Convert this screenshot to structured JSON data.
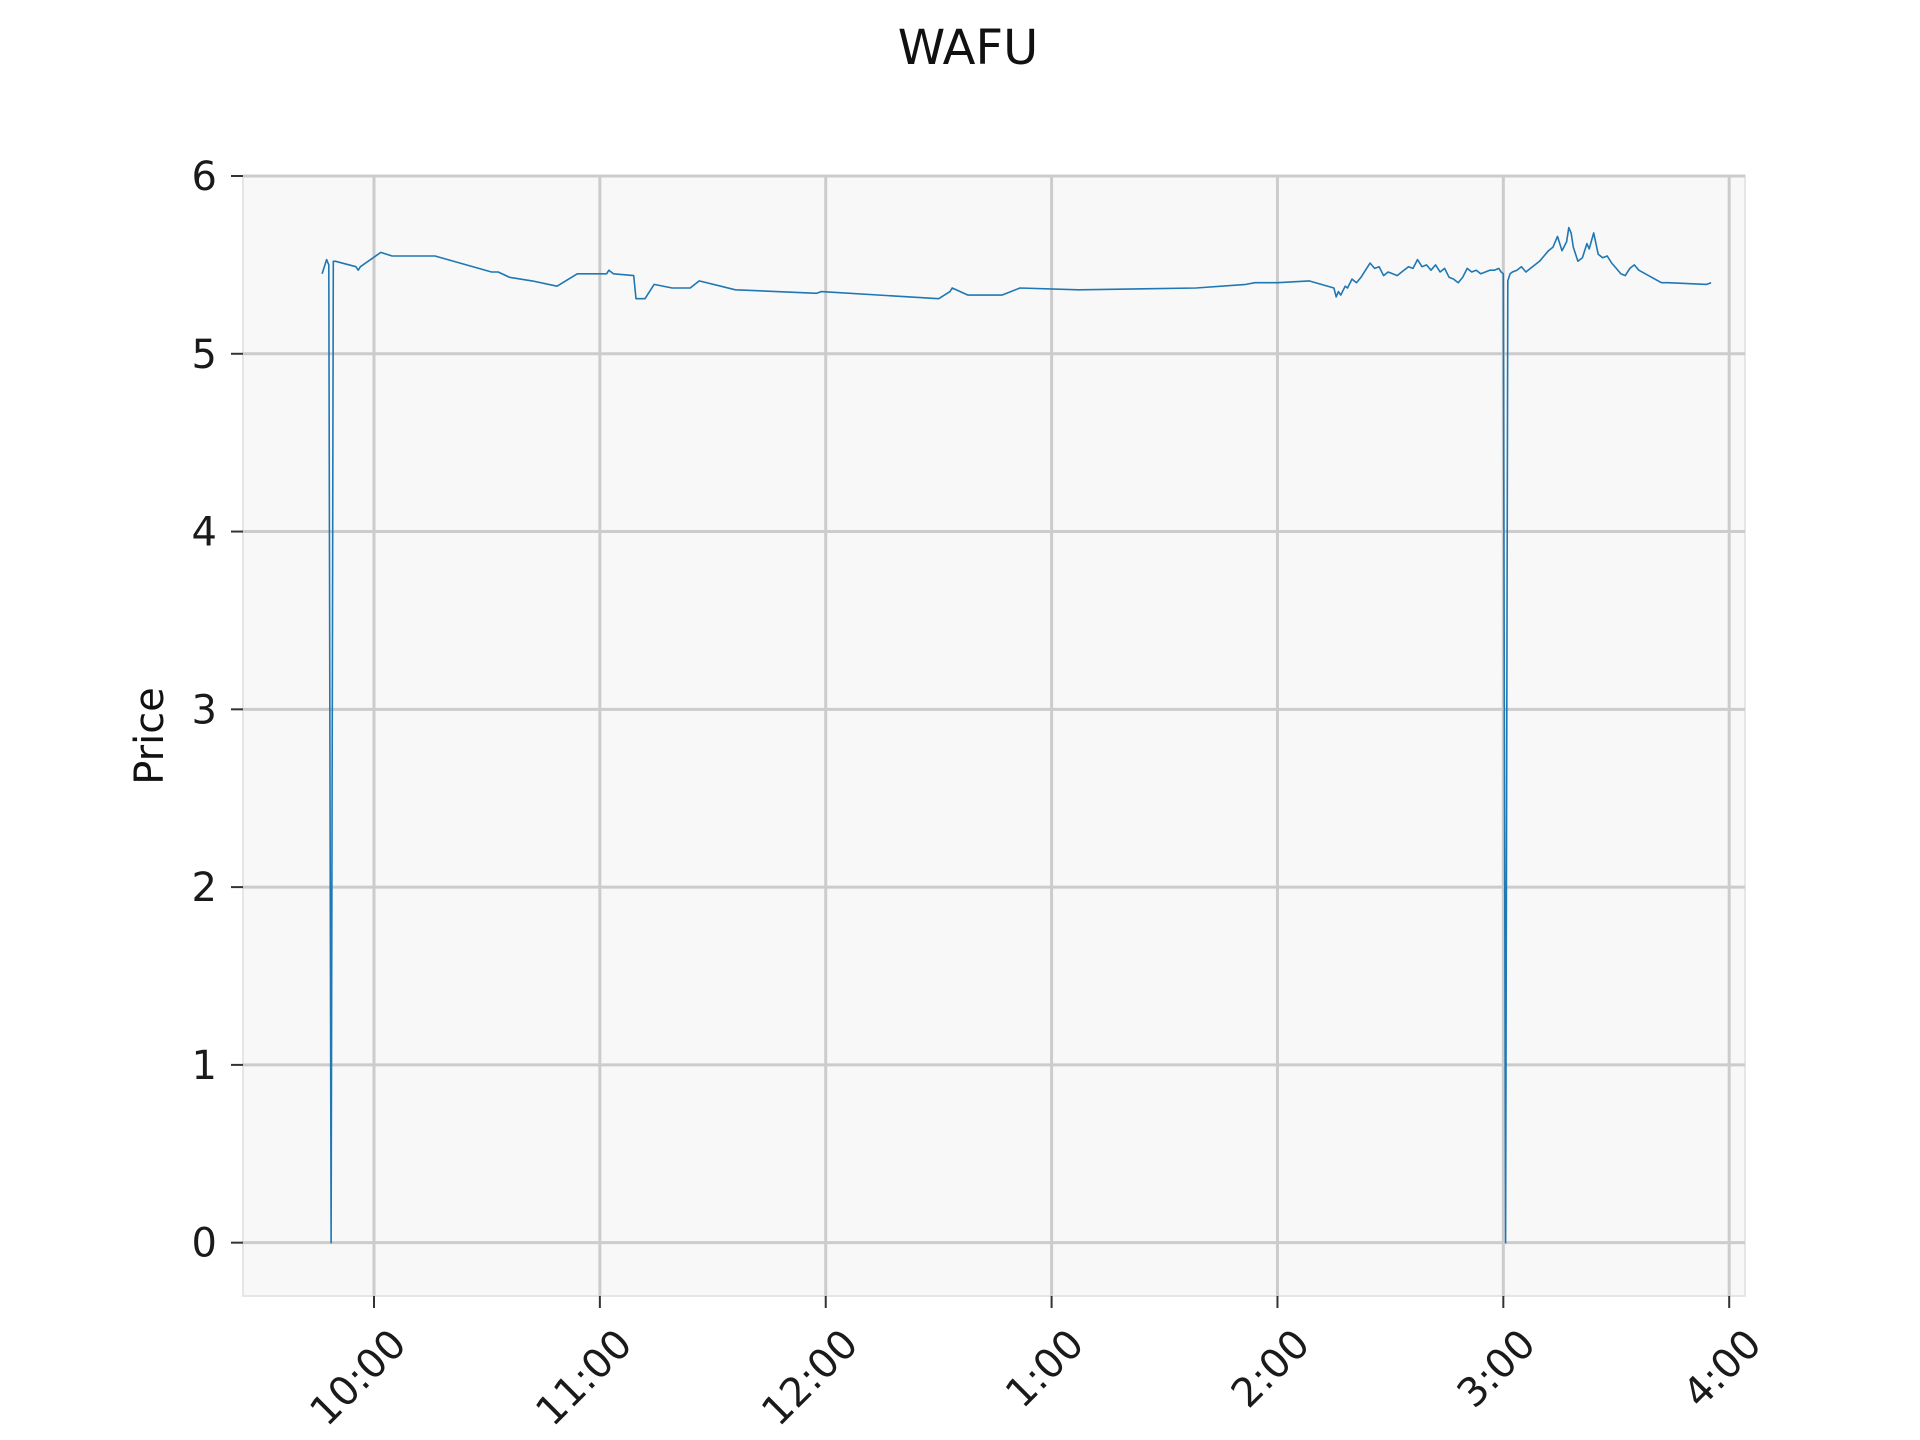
{
  "chart_data": {
    "type": "line",
    "title": "WAFU",
    "xlabel": "",
    "ylabel": "Price",
    "x_unit": "time of day (hours, 24h clock)",
    "xlim": [
      9.42,
      16.07
    ],
    "ylim": [
      -0.3,
      6.0
    ],
    "x_ticks": [
      {
        "value": 10,
        "label": "10:00"
      },
      {
        "value": 11,
        "label": "11:00"
      },
      {
        "value": 12,
        "label": "12:00"
      },
      {
        "value": 13,
        "label": "1:00"
      },
      {
        "value": 14,
        "label": "2:00"
      },
      {
        "value": 15,
        "label": "3:00"
      },
      {
        "value": 16,
        "label": "4:00"
      }
    ],
    "y_ticks": [
      {
        "value": 0,
        "label": "0"
      },
      {
        "value": 1,
        "label": "1"
      },
      {
        "value": 2,
        "label": "2"
      },
      {
        "value": 3,
        "label": "3"
      },
      {
        "value": 4,
        "label": "4"
      },
      {
        "value": 5,
        "label": "5"
      },
      {
        "value": 6,
        "label": "6"
      }
    ],
    "grid": true,
    "background_color": "#f8f8f8",
    "line_color": "#1f77b4",
    "series": [
      {
        "x": [
          9.77,
          9.79,
          9.8,
          9.81,
          9.82,
          9.83,
          9.92,
          9.93,
          9.94,
          10.03,
          10.08,
          10.27,
          10.52,
          10.55,
          10.6,
          10.7,
          10.81,
          10.9,
          11.03,
          11.04,
          11.06,
          11.15,
          11.16,
          11.2,
          11.24,
          11.32,
          11.4,
          11.44,
          11.6,
          11.96,
          11.98,
          12.5,
          12.55,
          12.56,
          12.63,
          12.78,
          12.86,
          13.12,
          13.64,
          13.86,
          13.9,
          14.0,
          14.14,
          14.25,
          14.26,
          14.27,
          14.28,
          14.3,
          14.31,
          14.33,
          14.35,
          14.37,
          14.39,
          14.41,
          14.43,
          14.45,
          14.47,
          14.49,
          14.51,
          14.53,
          14.55,
          14.58,
          14.6,
          14.62,
          14.64,
          14.66,
          14.68,
          14.7,
          14.72,
          14.74,
          14.76,
          14.78,
          14.8,
          14.82,
          14.84,
          14.86,
          14.88,
          14.9,
          14.92,
          14.94,
          14.96,
          14.98,
          14.99,
          15.0,
          15.01,
          15.02,
          15.03,
          15.04,
          15.06,
          15.08,
          15.1,
          15.12,
          15.14,
          15.16,
          15.18,
          15.2,
          15.22,
          15.24,
          15.26,
          15.28,
          15.29,
          15.3,
          15.31,
          15.33,
          15.35,
          15.37,
          15.38,
          15.4,
          15.42,
          15.44,
          15.46,
          15.48,
          15.5,
          15.52,
          15.54,
          15.56,
          15.58,
          15.6,
          15.7,
          15.73,
          15.9,
          15.92
        ],
        "y": [
          5.45,
          5.53,
          5.5,
          0.0,
          5.52,
          5.52,
          5.49,
          5.47,
          5.49,
          5.57,
          5.55,
          5.55,
          5.46,
          5.46,
          5.43,
          5.41,
          5.38,
          5.45,
          5.45,
          5.47,
          5.45,
          5.44,
          5.31,
          5.31,
          5.39,
          5.37,
          5.37,
          5.41,
          5.36,
          5.34,
          5.35,
          5.31,
          5.35,
          5.37,
          5.33,
          5.33,
          5.37,
          5.36,
          5.37,
          5.39,
          5.4,
          5.4,
          5.41,
          5.37,
          5.32,
          5.35,
          5.33,
          5.38,
          5.37,
          5.42,
          5.4,
          5.43,
          5.47,
          5.51,
          5.48,
          5.49,
          5.44,
          5.46,
          5.45,
          5.44,
          5.46,
          5.49,
          5.48,
          5.53,
          5.49,
          5.5,
          5.47,
          5.5,
          5.46,
          5.48,
          5.43,
          5.42,
          5.4,
          5.43,
          5.48,
          5.46,
          5.47,
          5.45,
          5.46,
          5.47,
          5.47,
          5.48,
          5.46,
          5.45,
          0.0,
          5.41,
          5.45,
          5.46,
          5.47,
          5.49,
          5.46,
          5.48,
          5.5,
          5.52,
          5.55,
          5.58,
          5.6,
          5.66,
          5.58,
          5.63,
          5.71,
          5.68,
          5.6,
          5.52,
          5.54,
          5.62,
          5.59,
          5.68,
          5.56,
          5.54,
          5.55,
          5.51,
          5.48,
          5.45,
          5.44,
          5.48,
          5.5,
          5.47,
          5.4,
          5.4,
          5.39,
          5.4
        ]
      }
    ]
  }
}
